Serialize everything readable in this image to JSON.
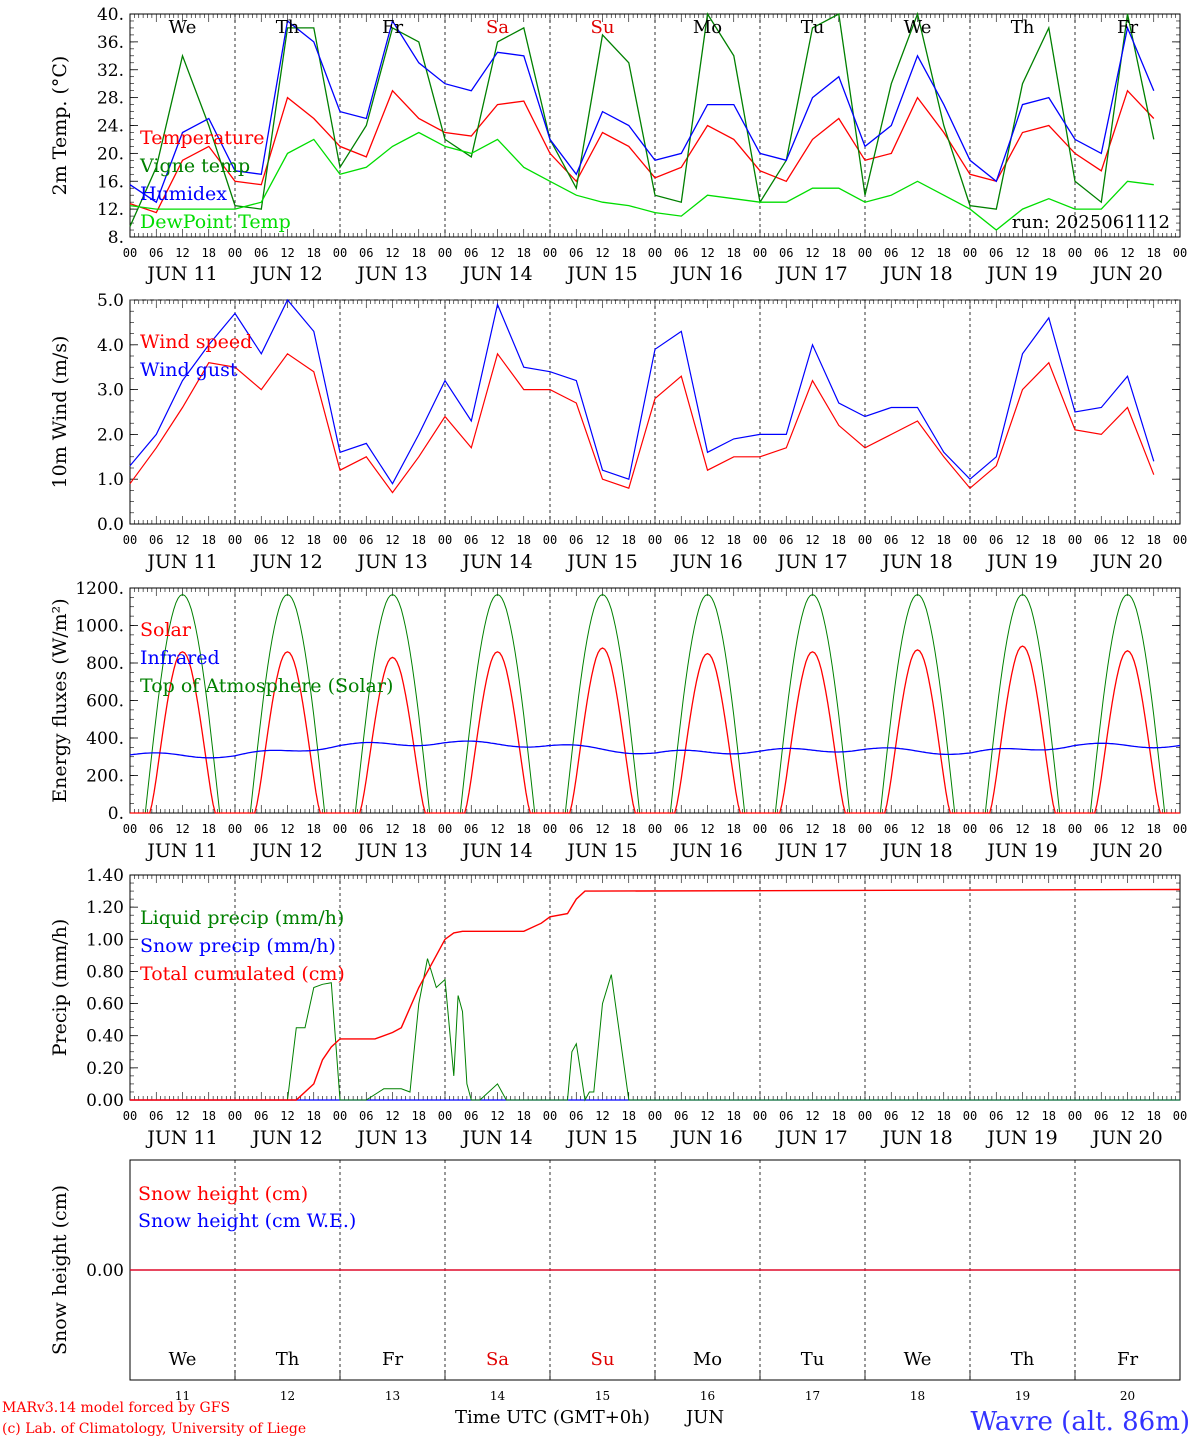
{
  "days": [
    "JUN 11",
    "JUN 12",
    "JUN 13",
    "JUN 14",
    "JUN 15",
    "JUN 16",
    "JUN 17",
    "JUN 18",
    "JUN 19",
    "JUN 20"
  ],
  "weekdays": [
    "We",
    "Th",
    "Fr",
    "Sa",
    "Su",
    "Mo",
    "Tu",
    "We",
    "Th",
    "Fr"
  ],
  "weekday_colors": [
    "#000000",
    "#000000",
    "#000000",
    "#e00000",
    "#e00000",
    "#000000",
    "#000000",
    "#000000",
    "#000000",
    "#000000"
  ],
  "hour_ticks": [
    "00",
    "06",
    "12",
    "18"
  ],
  "hour_tick_end": "00",
  "bottom_day_numbers": [
    "11",
    "12",
    "13",
    "14",
    "15",
    "16",
    "17",
    "18",
    "19",
    "20"
  ],
  "run_label": "run: 2025061112",
  "footer": {
    "left1": "MARv3.14 model forced by GFS",
    "left2": "(c) Lab. of Climatology, University of Liege",
    "center": "Time UTC (GMT+0h)",
    "center_unit": "JUN",
    "station": "Wavre (alt. 86m)"
  },
  "chart_data": [
    {
      "type": "line",
      "ylabel": "2m Temp. (°C)",
      "ylim": [
        8,
        40
      ],
      "ytick_labels": [
        "8.",
        "12.",
        "16.",
        "20.",
        "24.",
        "28.",
        "32.",
        "36.",
        "40."
      ],
      "ytick_values": [
        8,
        12,
        16,
        20,
        24,
        28,
        32,
        36,
        40
      ],
      "x_unit": "hours since JUN 11 00 UTC",
      "series": [
        {
          "name": "Temperature",
          "color": "#ff0000",
          "x": [
            0,
            6,
            12,
            18,
            24,
            30,
            36,
            42,
            48,
            54,
            60,
            66,
            72,
            78,
            84,
            90,
            96,
            102,
            108,
            114,
            120,
            126,
            132,
            138,
            144,
            150,
            156,
            162,
            168,
            174,
            180,
            186,
            192,
            198,
            204,
            210,
            216,
            222,
            228,
            234
          ],
          "y": [
            12.8,
            11.5,
            19,
            21,
            16,
            15.5,
            28,
            25,
            21,
            19.5,
            29,
            25,
            23,
            22.5,
            27,
            27.5,
            20,
            16,
            23,
            21,
            16.5,
            18,
            24,
            22,
            17.5,
            16,
            22,
            25,
            19,
            20,
            28,
            23,
            17,
            16,
            23,
            24,
            20,
            17.5,
            29,
            25
          ]
        },
        {
          "name": "Vigne temp",
          "color": "#008000",
          "x": [
            0,
            6,
            12,
            18,
            24,
            30,
            36,
            42,
            48,
            54,
            60,
            66,
            72,
            78,
            84,
            90,
            96,
            102,
            108,
            114,
            120,
            126,
            132,
            138,
            144,
            150,
            156,
            162,
            168,
            174,
            180,
            186,
            192,
            198,
            204,
            210,
            216,
            222,
            228,
            234
          ],
          "y": [
            9.5,
            18,
            34,
            24,
            12.5,
            12,
            38,
            38,
            18,
            24,
            38,
            36,
            22,
            19.5,
            36,
            38,
            22,
            15,
            37,
            33,
            14,
            13,
            40,
            34,
            13,
            19,
            38,
            40,
            14,
            30,
            40,
            24,
            12.5,
            12,
            30,
            38,
            16,
            13,
            40,
            22
          ]
        },
        {
          "name": "Humidex",
          "color": "#0000ff",
          "x": [
            0,
            6,
            12,
            18,
            24,
            30,
            36,
            42,
            48,
            54,
            60,
            66,
            72,
            78,
            84,
            90,
            96,
            102,
            108,
            114,
            120,
            126,
            132,
            138,
            144,
            150,
            156,
            162,
            168,
            174,
            180,
            186,
            192,
            198,
            204,
            210,
            216,
            222,
            228,
            234
          ],
          "y": [
            15.5,
            13,
            23,
            25,
            17.5,
            17,
            39,
            36,
            26,
            25,
            39,
            33,
            30,
            29,
            34.5,
            34,
            22,
            17,
            26,
            24,
            19,
            20,
            27,
            27,
            20,
            19,
            28,
            31,
            21,
            24,
            34,
            27,
            19,
            16,
            27,
            28,
            22,
            20,
            38,
            29
          ]
        },
        {
          "name": "DewPoint Temp",
          "color": "#00dd00",
          "x": [
            0,
            6,
            12,
            18,
            24,
            30,
            36,
            42,
            48,
            54,
            60,
            66,
            72,
            78,
            84,
            90,
            96,
            102,
            108,
            114,
            120,
            126,
            132,
            138,
            144,
            150,
            156,
            162,
            168,
            174,
            180,
            186,
            192,
            198,
            204,
            210,
            216,
            222,
            228,
            234
          ],
          "y": [
            12.5,
            12,
            12,
            12,
            12,
            13,
            20,
            22,
            17,
            18,
            21,
            23,
            21,
            20,
            22,
            18,
            16,
            14,
            13,
            12.5,
            11.5,
            11,
            14,
            13.5,
            13,
            13,
            15,
            15,
            13,
            14,
            16,
            14,
            12,
            9,
            12,
            13.5,
            12,
            12,
            16,
            15.5
          ]
        }
      ]
    },
    {
      "type": "line",
      "ylabel": "10m Wind (m/s)",
      "ylim": [
        0,
        5
      ],
      "ytick_labels": [
        "0.0",
        "1.0",
        "2.0",
        "3.0",
        "4.0",
        "5.0"
      ],
      "ytick_values": [
        0,
        1,
        2,
        3,
        4,
        5
      ],
      "reference_line": 5.0,
      "series": [
        {
          "name": "Wind speed",
          "color": "#ff0000",
          "x": [
            0,
            6,
            12,
            18,
            24,
            30,
            36,
            42,
            48,
            54,
            60,
            66,
            72,
            78,
            84,
            90,
            96,
            102,
            108,
            114,
            120,
            126,
            132,
            138,
            144,
            150,
            156,
            162,
            168,
            174,
            180,
            186,
            192,
            198,
            204,
            210,
            216,
            222,
            228,
            234
          ],
          "y": [
            0.9,
            1.7,
            2.6,
            3.6,
            3.5,
            3.0,
            3.8,
            3.4,
            1.2,
            1.5,
            0.7,
            1.5,
            2.4,
            1.7,
            3.8,
            3.0,
            3.0,
            2.7,
            1.0,
            0.8,
            2.8,
            3.3,
            1.2,
            1.5,
            1.5,
            1.7,
            3.2,
            2.2,
            1.7,
            2.0,
            2.3,
            1.5,
            0.8,
            1.3,
            3.0,
            3.6,
            2.1,
            2.0,
            2.6,
            1.1
          ]
        },
        {
          "name": "Wind gust",
          "color": "#0000ff",
          "x": [
            0,
            6,
            12,
            18,
            24,
            30,
            36,
            42,
            48,
            54,
            60,
            66,
            72,
            78,
            84,
            90,
            96,
            102,
            108,
            114,
            120,
            126,
            132,
            138,
            144,
            150,
            156,
            162,
            168,
            174,
            180,
            186,
            192,
            198,
            204,
            210,
            216,
            222,
            228,
            234
          ],
          "y": [
            1.3,
            2.0,
            3.2,
            4.0,
            4.7,
            3.8,
            5.0,
            4.3,
            1.6,
            1.8,
            0.9,
            2.0,
            3.2,
            2.3,
            4.9,
            3.5,
            3.4,
            3.2,
            1.2,
            1.0,
            3.9,
            4.3,
            1.6,
            1.9,
            2.0,
            2.0,
            4.0,
            2.7,
            2.4,
            2.6,
            2.6,
            1.6,
            1.0,
            1.5,
            3.8,
            4.6,
            2.5,
            2.6,
            3.3,
            1.4
          ]
        }
      ]
    },
    {
      "type": "line",
      "ylabel": "Energy fluxes (W/m²)",
      "ylim": [
        0,
        1200
      ],
      "ytick_labels": [
        "0.",
        "200.",
        "400.",
        "600.",
        "800.",
        "1000.",
        "1200."
      ],
      "ytick_values": [
        0,
        200,
        400,
        600,
        800,
        1000,
        1200
      ],
      "toa_peak": 1165,
      "solar_daily_peaks": [
        860,
        860,
        830,
        860,
        880,
        850,
        860,
        870,
        890,
        865
      ],
      "infrared_daily": [
        310,
        305,
        360,
        375,
        360,
        320,
        330,
        340,
        320,
        360
      ],
      "series": [
        {
          "name": "Solar",
          "color": "#ff0000"
        },
        {
          "name": "Infrared",
          "color": "#0000ff"
        },
        {
          "name": "Top of Atmosphere (Solar)",
          "color": "#008000"
        }
      ]
    },
    {
      "type": "line",
      "ylabel": "Precip (mm/h)",
      "ylim": [
        0,
        1.4
      ],
      "ytick_labels": [
        "0.00",
        "0.20",
        "0.40",
        "0.60",
        "0.80",
        "1.00",
        "1.20",
        "1.40"
      ],
      "ytick_values": [
        0,
        0.2,
        0.4,
        0.6,
        0.8,
        1.0,
        1.2,
        1.4
      ],
      "series": [
        {
          "name": "Liquid precip (mm/h)",
          "color": "#008000",
          "x": [
            0,
            30,
            36,
            38,
            40,
            42,
            44,
            46,
            48,
            54,
            58,
            62,
            64,
            66,
            68,
            70,
            72,
            74,
            75,
            76,
            77,
            78,
            80,
            84,
            86,
            88,
            96,
            100,
            101,
            102,
            104,
            105,
            106,
            108,
            110,
            114,
            116,
            117,
            118,
            119,
            120,
            122,
            240
          ],
          "y": [
            0,
            0,
            0,
            0.45,
            0.45,
            0.7,
            0.72,
            0.73,
            0,
            0,
            0.07,
            0.07,
            0.05,
            0.6,
            0.88,
            0.7,
            0.75,
            0.15,
            0.65,
            0.55,
            0.1,
            0,
            0,
            0.1,
            0,
            0,
            0,
            0,
            0.3,
            0.35,
            0,
            0.05,
            0.05,
            0.6,
            0.78,
            0,
            0,
            0,
            0,
            0,
            0,
            0,
            0
          ]
        },
        {
          "name": "Snow precip (mm/h)",
          "color": "#0000ff",
          "x": [
            0,
            240
          ],
          "y": [
            0,
            0
          ]
        },
        {
          "name": "Total cumulated (cm)",
          "color": "#ff0000",
          "x": [
            0,
            38,
            42,
            44,
            46,
            48,
            56,
            60,
            62,
            66,
            70,
            72,
            74,
            76,
            80,
            90,
            94,
            96,
            100,
            102,
            104,
            106,
            240
          ],
          "y": [
            0,
            0,
            0.1,
            0.25,
            0.33,
            0.38,
            0.38,
            0.42,
            0.45,
            0.7,
            0.9,
            1.0,
            1.04,
            1.05,
            1.05,
            1.05,
            1.1,
            1.14,
            1.16,
            1.25,
            1.3,
            1.3,
            1.31
          ]
        }
      ]
    },
    {
      "type": "line",
      "ylabel": "Snow height (cm)",
      "ytick_labels": [
        "0.00"
      ],
      "ytick_values": [
        0
      ],
      "series": [
        {
          "name": "Snow height (cm)",
          "color": "#ff0000",
          "x": [
            0,
            240
          ],
          "y": [
            0,
            0
          ]
        },
        {
          "name": "Snow height (cm W.E.)",
          "color": "#0000ff",
          "x": [
            0,
            240
          ],
          "y": [
            0,
            0
          ]
        }
      ]
    }
  ]
}
